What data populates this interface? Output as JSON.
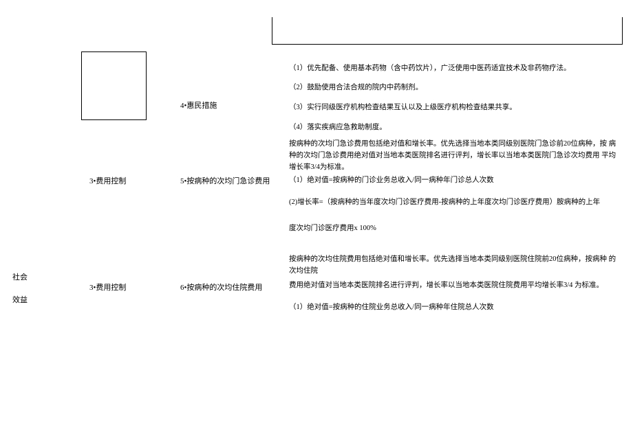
{
  "header": {
    "smallText": ""
  },
  "col1": {
    "line1": "社会",
    "line2": "效益"
  },
  "rows": {
    "r4": {
      "label": "4•惠民措施",
      "item1": "（1）优先配备、使用基本药物（含中药饮片），广泛使用中医药适宜技术及非药物疗法。",
      "item2": "（2）鼓励使用合法合规的院内中药制剂。",
      "item3": "（3）实行同级医疗机构检查结果互认以及上级医疗机构检查结果共享。",
      "item4": "（4）落实疾病应急救助制度。"
    },
    "r5": {
      "col2": "3•费用控制",
      "label": "5•按病种的次均门急诊费用",
      "intro": "按病种的次均门急诊费用包括绝对值和增长率。优先选择当地本类同级别医院门急诊前20位病种，按 病种的次均门急诊费用绝对值对当地本类医院排名进行评判，增长率以当地本类医院门急诊次均费用 平均增长率3/4为标准。",
      "item1": "（1）绝对值=按病种的门诊业务总收入/同一病种年门诊总人次数",
      "item2": "(2)增长率=（按病种的当年度次均门诊医疗费用-按病种的上年度次均门诊医疗费用）胺病种的上年",
      "item3": "度次均门诊医疗费用x 100%"
    },
    "r6": {
      "col2": "3•费用控制",
      "label": "6•按病种的次均住院费用",
      "intro1": "按病种的次均住院费用包括绝对值和增长率。优先选择当地本类同级别医院住院前20位病种，按病种 的次均住院",
      "intro2": "费用绝对值对当地本类医院排名进行评判，增长率以当地本类医院住院费用平均增长率3/4 为标准。",
      "item1": "（1）绝对值=按病种的住院业务总收入/同一病种年住院总人次数"
    }
  }
}
